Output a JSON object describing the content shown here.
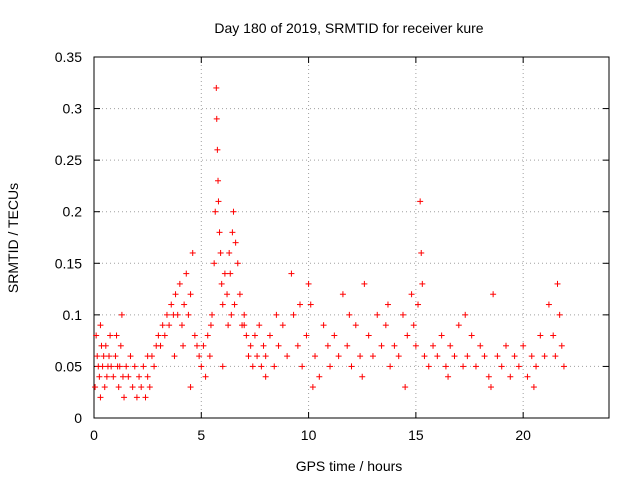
{
  "chart_data": {
    "type": "scatter",
    "title": "Day 180 of 2019, SRMTID for receiver kure",
    "xlabel": "GPS time / hours",
    "ylabel": "SRMTID / TECUs",
    "xlim": [
      0,
      24
    ],
    "ylim": [
      0,
      0.35
    ],
    "grid": true,
    "marker": "+",
    "color": "#ff0000",
    "x_ticks": [
      0,
      5,
      10,
      15,
      20
    ],
    "x_tick_labels": [
      "0",
      "5",
      "10",
      "15",
      "20"
    ],
    "y_ticks": [
      0,
      0.05,
      0.1,
      0.15,
      0.2,
      0.25,
      0.3,
      0.35
    ],
    "y_tick_labels": [
      "0",
      "0.05",
      "0.1",
      "0.15",
      "0.2",
      "0.25",
      "0.3",
      "0.35"
    ],
    "points": [
      [
        0.05,
        0.03
      ],
      [
        0.1,
        0.08
      ],
      [
        0.15,
        0.06
      ],
      [
        0.2,
        0.05
      ],
      [
        0.25,
        0.04
      ],
      [
        0.3,
        0.09
      ],
      [
        0.35,
        0.07
      ],
      [
        0.4,
        0.05
      ],
      [
        0.45,
        0.06
      ],
      [
        0.5,
        0.03
      ],
      [
        0.55,
        0.07
      ],
      [
        0.6,
        0.04
      ],
      [
        0.65,
        0.05
      ],
      [
        0.7,
        0.06
      ],
      [
        0.8,
        0.05
      ],
      [
        0.9,
        0.04
      ],
      [
        1.0,
        0.06
      ],
      [
        1.05,
        0.08
      ],
      [
        1.1,
        0.05
      ],
      [
        1.15,
        0.03
      ],
      [
        1.2,
        0.05
      ],
      [
        1.3,
        0.1
      ],
      [
        1.35,
        0.04
      ],
      [
        1.4,
        0.02
      ],
      [
        1.5,
        0.05
      ],
      [
        1.6,
        0.04
      ],
      [
        1.7,
        0.06
      ],
      [
        1.8,
        0.03
      ],
      [
        1.9,
        0.05
      ],
      [
        2.0,
        0.02
      ],
      [
        2.1,
        0.04
      ],
      [
        2.2,
        0.03
      ],
      [
        2.3,
        0.05
      ],
      [
        2.4,
        0.02
      ],
      [
        2.5,
        0.04
      ],
      [
        2.6,
        0.03
      ],
      [
        2.7,
        0.06
      ],
      [
        2.8,
        0.05
      ],
      [
        2.9,
        0.07
      ],
      [
        3.0,
        0.08
      ],
      [
        3.1,
        0.07
      ],
      [
        3.2,
        0.09
      ],
      [
        3.3,
        0.08
      ],
      [
        3.4,
        0.1
      ],
      [
        3.5,
        0.09
      ],
      [
        3.6,
        0.11
      ],
      [
        3.7,
        0.1
      ],
      [
        3.8,
        0.12
      ],
      [
        3.9,
        0.1
      ],
      [
        4.0,
        0.13
      ],
      [
        4.1,
        0.09
      ],
      [
        4.2,
        0.11
      ],
      [
        4.3,
        0.14
      ],
      [
        4.4,
        0.1
      ],
      [
        4.5,
        0.12
      ],
      [
        4.6,
        0.16
      ],
      [
        4.7,
        0.08
      ],
      [
        4.8,
        0.07
      ],
      [
        4.9,
        0.06
      ],
      [
        5.0,
        0.05
      ],
      [
        5.1,
        0.07
      ],
      [
        5.2,
        0.04
      ],
      [
        5.3,
        0.08
      ],
      [
        5.4,
        0.06
      ],
      [
        5.5,
        0.1
      ],
      [
        5.6,
        0.15
      ],
      [
        5.65,
        0.2
      ],
      [
        5.7,
        0.32
      ],
      [
        5.72,
        0.29
      ],
      [
        5.75,
        0.26
      ],
      [
        5.78,
        0.23
      ],
      [
        5.8,
        0.21
      ],
      [
        5.85,
        0.18
      ],
      [
        5.9,
        0.16
      ],
      [
        5.95,
        0.13
      ],
      [
        6.0,
        0.11
      ],
      [
        6.1,
        0.14
      ],
      [
        6.2,
        0.12
      ],
      [
        6.3,
        0.16
      ],
      [
        6.4,
        0.1
      ],
      [
        6.5,
        0.2
      ],
      [
        6.6,
        0.17
      ],
      [
        6.7,
        0.15
      ],
      [
        6.8,
        0.12
      ],
      [
        6.9,
        0.09
      ],
      [
        7.0,
        0.1
      ],
      [
        7.1,
        0.08
      ],
      [
        7.2,
        0.06
      ],
      [
        7.3,
        0.07
      ],
      [
        7.4,
        0.05
      ],
      [
        7.5,
        0.08
      ],
      [
        7.6,
        0.06
      ],
      [
        7.7,
        0.09
      ],
      [
        7.8,
        0.05
      ],
      [
        7.9,
        0.07
      ],
      [
        8.0,
        0.06
      ],
      [
        8.2,
        0.08
      ],
      [
        8.4,
        0.05
      ],
      [
        8.6,
        0.07
      ],
      [
        8.8,
        0.09
      ],
      [
        9.0,
        0.06
      ],
      [
        9.2,
        0.14
      ],
      [
        9.3,
        0.1
      ],
      [
        9.5,
        0.07
      ],
      [
        9.7,
        0.05
      ],
      [
        9.9,
        0.08
      ],
      [
        10.0,
        0.13
      ],
      [
        10.1,
        0.11
      ],
      [
        10.3,
        0.06
      ],
      [
        10.5,
        0.04
      ],
      [
        10.7,
        0.09
      ],
      [
        10.9,
        0.07
      ],
      [
        11.0,
        0.05
      ],
      [
        11.2,
        0.08
      ],
      [
        11.4,
        0.06
      ],
      [
        11.6,
        0.12
      ],
      [
        11.8,
        0.07
      ],
      [
        12.0,
        0.05
      ],
      [
        12.2,
        0.09
      ],
      [
        12.4,
        0.06
      ],
      [
        12.6,
        0.13
      ],
      [
        12.8,
        0.08
      ],
      [
        13.0,
        0.06
      ],
      [
        13.2,
        0.1
      ],
      [
        13.4,
        0.07
      ],
      [
        13.6,
        0.09
      ],
      [
        13.8,
        0.05
      ],
      [
        14.0,
        0.07
      ],
      [
        14.2,
        0.06
      ],
      [
        14.4,
        0.1
      ],
      [
        14.6,
        0.08
      ],
      [
        14.8,
        0.12
      ],
      [
        14.9,
        0.09
      ],
      [
        15.0,
        0.07
      ],
      [
        15.1,
        0.11
      ],
      [
        15.2,
        0.21
      ],
      [
        15.25,
        0.16
      ],
      [
        15.3,
        0.13
      ],
      [
        15.4,
        0.06
      ],
      [
        15.6,
        0.05
      ],
      [
        15.8,
        0.07
      ],
      [
        16.0,
        0.06
      ],
      [
        16.2,
        0.08
      ],
      [
        16.4,
        0.05
      ],
      [
        16.6,
        0.07
      ],
      [
        16.8,
        0.06
      ],
      [
        17.0,
        0.09
      ],
      [
        17.2,
        0.05
      ],
      [
        17.4,
        0.06
      ],
      [
        17.6,
        0.08
      ],
      [
        17.8,
        0.05
      ],
      [
        18.0,
        0.07
      ],
      [
        18.2,
        0.06
      ],
      [
        18.4,
        0.04
      ],
      [
        18.6,
        0.12
      ],
      [
        18.8,
        0.06
      ],
      [
        19.0,
        0.05
      ],
      [
        19.2,
        0.07
      ],
      [
        19.4,
        0.04
      ],
      [
        19.6,
        0.06
      ],
      [
        19.8,
        0.05
      ],
      [
        20.0,
        0.07
      ],
      [
        20.2,
        0.04
      ],
      [
        20.4,
        0.06
      ],
      [
        20.6,
        0.05
      ],
      [
        20.8,
        0.08
      ],
      [
        21.0,
        0.06
      ],
      [
        21.2,
        0.11
      ],
      [
        21.4,
        0.08
      ],
      [
        21.5,
        0.06
      ],
      [
        21.6,
        0.13
      ],
      [
        21.7,
        0.1
      ],
      [
        21.8,
        0.07
      ],
      [
        21.9,
        0.05
      ],
      [
        0.3,
        0.02
      ],
      [
        2.5,
        0.06
      ],
      [
        4.5,
        0.03
      ],
      [
        6.0,
        0.05
      ],
      [
        8.0,
        0.04
      ],
      [
        10.2,
        0.03
      ],
      [
        12.5,
        0.04
      ],
      [
        14.5,
        0.03
      ],
      [
        16.5,
        0.04
      ],
      [
        18.5,
        0.03
      ],
      [
        20.5,
        0.03
      ],
      [
        7.0,
        0.09
      ],
      [
        8.5,
        0.1
      ],
      [
        9.6,
        0.11
      ],
      [
        13.7,
        0.11
      ],
      [
        17.3,
        0.1
      ],
      [
        6.25,
        0.09
      ],
      [
        6.35,
        0.14
      ],
      [
        6.45,
        0.18
      ],
      [
        6.55,
        0.11
      ],
      [
        5.45,
        0.09
      ],
      [
        3.75,
        0.06
      ],
      [
        4.15,
        0.07
      ],
      [
        1.25,
        0.07
      ],
      [
        0.75,
        0.08
      ],
      [
        11.9,
        0.1
      ]
    ]
  }
}
